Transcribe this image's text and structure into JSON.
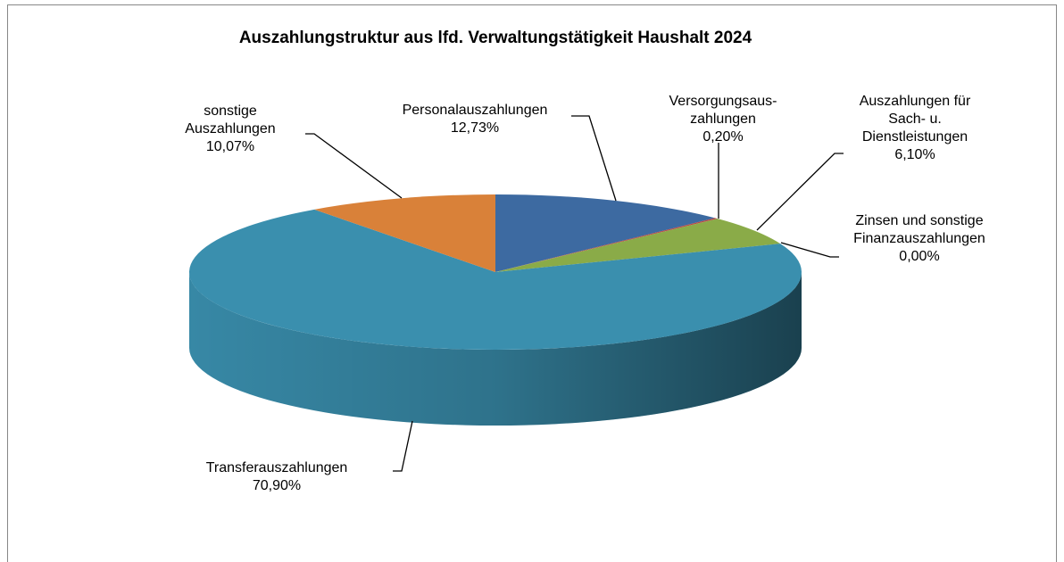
{
  "chart_data": {
    "type": "pie3d",
    "title": "Auszahlungstruktur aus lfd. Verwaltungstätigkeit Haushalt 2024",
    "categories": [
      "Personalauszahlungen",
      "Versorgungsaus-\nzahlungen",
      "Auszahlungen für\nSach- u.\nDienstleistungen",
      "Zinsen und sonstige\nFinanzauszahlungen",
      "Transferauszahlungen",
      "sonstige\nAuszahlungen"
    ],
    "values": [
      12.73,
      0.2,
      6.1,
      0.0,
      70.9,
      10.07
    ],
    "value_labels": [
      "12,73%",
      "0,20%",
      "6,10%",
      "0,00%",
      "70,90%",
      "10,07%"
    ],
    "colors": [
      "#3d6aa1",
      "#b84a45",
      "#8aab48",
      "#7a5f9a",
      "#3a8fae",
      "#d98139"
    ]
  }
}
